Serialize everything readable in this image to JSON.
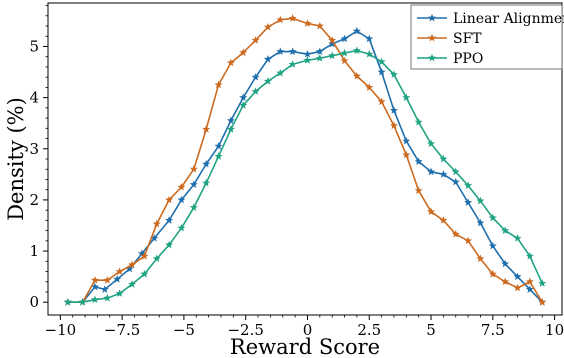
{
  "chart_data": {
    "type": "line",
    "xlabel": "Reward Score",
    "ylabel": "Density (%)",
    "xlim": [
      -10.5,
      10.3
    ],
    "ylim": [
      -0.25,
      5.85
    ],
    "xticks": [
      -10,
      -7.5,
      -5,
      -2.5,
      0,
      2.5,
      5,
      7.5,
      10
    ],
    "xtick_labels": [
      "−10",
      "−7.5",
      "−5",
      "−2.5",
      "0",
      "2.5",
      "5",
      "7.5",
      "10"
    ],
    "yticks": [
      0,
      1,
      2,
      3,
      4,
      5
    ],
    "ytick_labels": [
      "0",
      "1",
      "2",
      "3",
      "4",
      "5"
    ],
    "grid": false,
    "legend_position": "top-right",
    "series": [
      {
        "name": "Linear Alignment",
        "color": "#1f6fad",
        "marker": "star",
        "x": [
          -9.7,
          -9.1,
          -8.6,
          -8.2,
          -7.7,
          -7.2,
          -6.7,
          -6.2,
          -5.6,
          -5.1,
          -4.6,
          -4.1,
          -3.6,
          -3.1,
          -2.6,
          -2.1,
          -1.6,
          -1.1,
          -0.6,
          0.0,
          0.5,
          1.0,
          1.5,
          2.0,
          2.5,
          3.0,
          3.5,
          4.0,
          4.5,
          5.0,
          5.5,
          6.0,
          6.5,
          7.0,
          7.5,
          8.0,
          8.5,
          9.0,
          9.5
        ],
        "y": [
          0.0,
          0.0,
          0.3,
          0.25,
          0.45,
          0.65,
          0.95,
          1.25,
          1.6,
          2.0,
          2.3,
          2.7,
          3.05,
          3.55,
          4.0,
          4.4,
          4.75,
          4.9,
          4.9,
          4.85,
          4.9,
          5.05,
          5.15,
          5.3,
          5.15,
          4.5,
          3.75,
          3.15,
          2.75,
          2.55,
          2.5,
          2.35,
          1.95,
          1.55,
          1.1,
          0.75,
          0.5,
          0.25,
          0.0
        ]
      },
      {
        "name": "SFT",
        "color": "#cc6a1f",
        "marker": "star",
        "x": [
          -9.7,
          -9.1,
          -8.6,
          -8.1,
          -7.6,
          -7.1,
          -6.6,
          -6.1,
          -5.6,
          -5.1,
          -4.6,
          -4.1,
          -3.6,
          -3.1,
          -2.6,
          -2.1,
          -1.6,
          -1.1,
          -0.6,
          0.0,
          0.5,
          1.0,
          1.5,
          2.0,
          2.5,
          3.0,
          3.5,
          4.0,
          4.5,
          5.0,
          5.5,
          6.0,
          6.5,
          7.0,
          7.5,
          8.0,
          8.5,
          9.0,
          9.5
        ],
        "y": [
          0.0,
          0.0,
          0.43,
          0.43,
          0.6,
          0.73,
          0.9,
          1.53,
          2.0,
          2.25,
          2.6,
          3.38,
          4.25,
          4.68,
          4.88,
          5.12,
          5.38,
          5.52,
          5.55,
          5.45,
          5.4,
          5.12,
          4.72,
          4.42,
          4.2,
          3.92,
          3.45,
          2.88,
          2.18,
          1.77,
          1.6,
          1.33,
          1.2,
          0.85,
          0.55,
          0.4,
          0.28,
          0.4,
          0.0
        ]
      },
      {
        "name": "PPO",
        "color": "#1fa383",
        "marker": "star",
        "x": [
          -9.7,
          -9.1,
          -8.6,
          -8.1,
          -7.6,
          -7.1,
          -6.6,
          -6.1,
          -5.6,
          -5.1,
          -4.6,
          -4.1,
          -3.6,
          -3.1,
          -2.6,
          -2.1,
          -1.6,
          -1.1,
          -0.6,
          0.0,
          0.5,
          1.0,
          1.5,
          2.0,
          2.5,
          3.0,
          3.5,
          4.0,
          4.5,
          5.0,
          5.5,
          6.0,
          6.5,
          7.0,
          7.5,
          8.0,
          8.5,
          9.0,
          9.5
        ],
        "y": [
          0.0,
          0.0,
          0.05,
          0.08,
          0.17,
          0.35,
          0.55,
          0.85,
          1.12,
          1.45,
          1.85,
          2.33,
          2.85,
          3.38,
          3.85,
          4.12,
          4.32,
          4.48,
          4.65,
          4.73,
          4.77,
          4.82,
          4.87,
          4.92,
          4.85,
          4.7,
          4.45,
          4.0,
          3.52,
          3.1,
          2.8,
          2.55,
          2.28,
          1.98,
          1.65,
          1.4,
          1.25,
          0.9,
          0.37
        ]
      }
    ]
  }
}
